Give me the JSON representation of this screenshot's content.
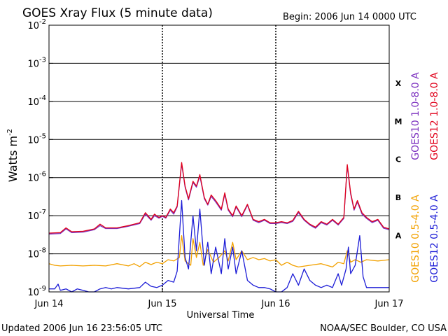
{
  "chart_data": {
    "type": "line",
    "title": "GOES Xray Flux (5 minute data)",
    "begin": "Begin:  2006 Jun 14 0000 UTC",
    "xlabel": "Universal Time",
    "ylabel": "Watts m",
    "ylabel_sup": "-2",
    "y_scale": "log",
    "ylim": [
      1e-09,
      0.01
    ],
    "xlim_days": [
      0,
      3
    ],
    "grid": true,
    "y_ticks": [
      {
        "base": "10",
        "exp": "-9",
        "value": 1e-09
      },
      {
        "base": "10",
        "exp": "-8",
        "value": 1e-08
      },
      {
        "base": "10",
        "exp": "-7",
        "value": 1e-07
      },
      {
        "base": "10",
        "exp": "-6",
        "value": 1e-06
      },
      {
        "base": "10",
        "exp": "-5",
        "value": 1e-05
      },
      {
        "base": "10",
        "exp": "-4",
        "value": 0.0001
      },
      {
        "base": "10",
        "exp": "-3",
        "value": 0.001
      },
      {
        "base": "10",
        "exp": "-2",
        "value": 0.01
      }
    ],
    "x_ticks": [
      {
        "label": "Jun 14",
        "day": 0
      },
      {
        "label": "Jun 15",
        "day": 1
      },
      {
        "label": "Jun 16",
        "day": 2
      },
      {
        "label": "Jun 17",
        "day": 3
      }
    ],
    "flare_classes": [
      {
        "label": "X",
        "value": 0.0003
      },
      {
        "label": "M",
        "value": 3e-05
      },
      {
        "label": "C",
        "value": 3e-06
      },
      {
        "label": "B",
        "value": 3e-07
      },
      {
        "label": "A",
        "value": 3e-08
      }
    ],
    "legend_long": [
      {
        "name": "GOES10 1.0-8.0 A",
        "color": "#7b2fbf"
      },
      {
        "name": "GOES12 1.0-8.0 A",
        "color": "#e0001a"
      }
    ],
    "legend_short": [
      {
        "name": "GOES10 0.5-4.0 A",
        "color": "#f2a100"
      },
      {
        "name": "GOES12 0.5-4.0 A",
        "color": "#1c1cd6"
      }
    ],
    "series": [
      {
        "name": "GOES12 1.0-8.0 A",
        "color": "#e0001a",
        "points": [
          [
            0.0,
            3.5e-08
          ],
          [
            0.1,
            3.6e-08
          ],
          [
            0.15,
            4.8e-08
          ],
          [
            0.2,
            3.8e-08
          ],
          [
            0.3,
            3.9e-08
          ],
          [
            0.4,
            4.5e-08
          ],
          [
            0.45,
            6e-08
          ],
          [
            0.5,
            4.8e-08
          ],
          [
            0.6,
            4.8e-08
          ],
          [
            0.7,
            5.5e-08
          ],
          [
            0.8,
            6.5e-08
          ],
          [
            0.85,
            1.2e-07
          ],
          [
            0.9,
            8e-08
          ],
          [
            0.93,
            1.1e-07
          ],
          [
            0.97,
            9e-08
          ],
          [
            1.0,
            1e-07
          ],
          [
            1.03,
            9e-08
          ],
          [
            1.07,
            1.5e-07
          ],
          [
            1.1,
            1.2e-07
          ],
          [
            1.13,
            1.8e-07
          ],
          [
            1.17,
            2.5e-06
          ],
          [
            1.2,
            6e-07
          ],
          [
            1.23,
            2.8e-07
          ],
          [
            1.27,
            8e-07
          ],
          [
            1.3,
            6e-07
          ],
          [
            1.33,
            1.2e-06
          ],
          [
            1.37,
            3e-07
          ],
          [
            1.4,
            2e-07
          ],
          [
            1.43,
            3.5e-07
          ],
          [
            1.47,
            2.5e-07
          ],
          [
            1.52,
            1.5e-07
          ],
          [
            1.55,
            4e-07
          ],
          [
            1.58,
            1.5e-07
          ],
          [
            1.62,
            1e-07
          ],
          [
            1.65,
            1.8e-07
          ],
          [
            1.7,
            1e-07
          ],
          [
            1.75,
            2e-07
          ],
          [
            1.8,
            8e-08
          ],
          [
            1.85,
            7e-08
          ],
          [
            1.9,
            8e-08
          ],
          [
            1.95,
            6.5e-08
          ],
          [
            2.0,
            6.5e-08
          ],
          [
            2.05,
            7e-08
          ],
          [
            2.1,
            6.5e-08
          ],
          [
            2.15,
            7.5e-08
          ],
          [
            2.2,
            1.3e-07
          ],
          [
            2.25,
            8e-08
          ],
          [
            2.3,
            6e-08
          ],
          [
            2.35,
            5e-08
          ],
          [
            2.4,
            7e-08
          ],
          [
            2.45,
            6e-08
          ],
          [
            2.5,
            8e-08
          ],
          [
            2.55,
            6e-08
          ],
          [
            2.6,
            9e-08
          ],
          [
            2.63,
            2.2e-06
          ],
          [
            2.66,
            4e-07
          ],
          [
            2.69,
            1.5e-07
          ],
          [
            2.72,
            2.5e-07
          ],
          [
            2.76,
            1.2e-07
          ],
          [
            2.8,
            9e-08
          ],
          [
            2.85,
            7e-08
          ],
          [
            2.9,
            8e-08
          ],
          [
            2.95,
            5e-08
          ],
          [
            3.0,
            4.5e-08
          ]
        ]
      },
      {
        "name": "GOES10 1.0-8.0 A",
        "color": "#7b2fbf",
        "points": [
          [
            0.0,
            3.3e-08
          ],
          [
            0.1,
            3.4e-08
          ],
          [
            0.15,
            4.5e-08
          ],
          [
            0.2,
            3.6e-08
          ],
          [
            0.3,
            3.7e-08
          ],
          [
            0.4,
            4.3e-08
          ],
          [
            0.45,
            5.5e-08
          ],
          [
            0.5,
            4.6e-08
          ],
          [
            0.6,
            4.6e-08
          ],
          [
            0.7,
            5.3e-08
          ],
          [
            0.8,
            6.2e-08
          ],
          [
            0.85,
            1.1e-07
          ],
          [
            0.9,
            7.6e-08
          ],
          [
            0.93,
            1e-07
          ],
          [
            0.97,
            8.6e-08
          ],
          [
            1.0,
            9.6e-08
          ],
          [
            1.03,
            8.6e-08
          ],
          [
            1.07,
            1.4e-07
          ],
          [
            1.1,
            1.1e-07
          ],
          [
            1.13,
            1.7e-07
          ],
          [
            1.17,
            2.3e-06
          ],
          [
            1.2,
            5.6e-07
          ],
          [
            1.23,
            2.6e-07
          ],
          [
            1.27,
            7.4e-07
          ],
          [
            1.3,
            5.6e-07
          ],
          [
            1.33,
            1.1e-06
          ],
          [
            1.37,
            2.8e-07
          ],
          [
            1.4,
            1.9e-07
          ],
          [
            1.43,
            3.2e-07
          ],
          [
            1.47,
            2.3e-07
          ],
          [
            1.52,
            1.4e-07
          ],
          [
            1.55,
            3.7e-07
          ],
          [
            1.58,
            1.4e-07
          ],
          [
            1.62,
            9.4e-08
          ],
          [
            1.65,
            1.7e-07
          ],
          [
            1.7,
            9.4e-08
          ],
          [
            1.75,
            1.9e-07
          ],
          [
            1.8,
            7.6e-08
          ],
          [
            1.85,
            6.6e-08
          ],
          [
            1.9,
            7.6e-08
          ],
          [
            1.95,
            6.2e-08
          ],
          [
            2.0,
            6.2e-08
          ],
          [
            2.05,
            6.6e-08
          ],
          [
            2.1,
            6.2e-08
          ],
          [
            2.15,
            7.1e-08
          ],
          [
            2.2,
            1.2e-07
          ],
          [
            2.25,
            7.6e-08
          ],
          [
            2.3,
            5.7e-08
          ],
          [
            2.35,
            4.7e-08
          ],
          [
            2.4,
            6.6e-08
          ],
          [
            2.45,
            5.7e-08
          ],
          [
            2.5,
            7.6e-08
          ],
          [
            2.55,
            5.7e-08
          ],
          [
            2.6,
            8.5e-08
          ],
          [
            2.63,
            2e-06
          ],
          [
            2.66,
            3.7e-07
          ],
          [
            2.69,
            1.4e-07
          ],
          [
            2.72,
            2.3e-07
          ],
          [
            2.76,
            1.1e-07
          ],
          [
            2.8,
            8.5e-08
          ],
          [
            2.85,
            6.6e-08
          ],
          [
            2.9,
            7.6e-08
          ],
          [
            2.95,
            4.7e-08
          ],
          [
            3.0,
            4.3e-08
          ]
        ]
      },
      {
        "name": "GOES10 0.5-4.0 A",
        "color": "#f2a100",
        "points": [
          [
            0.0,
            5.5e-09
          ],
          [
            0.05,
            5e-09
          ],
          [
            0.1,
            4.8e-09
          ],
          [
            0.2,
            5e-09
          ],
          [
            0.3,
            4.8e-09
          ],
          [
            0.4,
            5e-09
          ],
          [
            0.5,
            4.8e-09
          ],
          [
            0.6,
            5.5e-09
          ],
          [
            0.7,
            4.8e-09
          ],
          [
            0.75,
            5.5e-09
          ],
          [
            0.8,
            4.6e-09
          ],
          [
            0.85,
            6e-09
          ],
          [
            0.9,
            5.2e-09
          ],
          [
            0.95,
            6e-09
          ],
          [
            1.0,
            5.5e-09
          ],
          [
            1.05,
            7e-09
          ],
          [
            1.1,
            6.5e-09
          ],
          [
            1.15,
            8e-09
          ],
          [
            1.17,
            3e-08
          ],
          [
            1.2,
            6.5e-09
          ],
          [
            1.25,
            5e-09
          ],
          [
            1.27,
            2.5e-08
          ],
          [
            1.3,
            8e-09
          ],
          [
            1.33,
            2e-08
          ],
          [
            1.36,
            5e-09
          ],
          [
            1.4,
            1.3e-08
          ],
          [
            1.45,
            6e-09
          ],
          [
            1.5,
            8e-09
          ],
          [
            1.55,
            1.2e-08
          ],
          [
            1.58,
            6.5e-09
          ],
          [
            1.62,
            2e-08
          ],
          [
            1.65,
            7e-09
          ],
          [
            1.7,
            1.2e-08
          ],
          [
            1.75,
            7e-09
          ],
          [
            1.8,
            8e-09
          ],
          [
            1.85,
            7e-09
          ],
          [
            1.9,
            7.5e-09
          ],
          [
            1.95,
            6.5e-09
          ],
          [
            2.0,
            7e-09
          ],
          [
            2.05,
            5e-09
          ],
          [
            2.1,
            6e-09
          ],
          [
            2.15,
            5e-09
          ],
          [
            2.2,
            4.5e-09
          ],
          [
            2.3,
            5e-09
          ],
          [
            2.4,
            5.5e-09
          ],
          [
            2.5,
            4.5e-09
          ],
          [
            2.55,
            6e-09
          ],
          [
            2.6,
            5.5e-09
          ],
          [
            2.63,
            1.2e-08
          ],
          [
            2.66,
            6e-09
          ],
          [
            2.7,
            7e-09
          ],
          [
            2.75,
            6e-09
          ],
          [
            2.8,
            7e-09
          ],
          [
            2.9,
            6.5e-09
          ],
          [
            3.0,
            7e-09
          ]
        ]
      },
      {
        "name": "GOES12 0.5-4.0 A",
        "color": "#1c1cd6",
        "points": [
          [
            0.0,
            1.2e-09
          ],
          [
            0.05,
            1.2e-09
          ],
          [
            0.08,
            1.6e-09
          ],
          [
            0.1,
            1.1e-09
          ],
          [
            0.15,
            1.2e-09
          ],
          [
            0.2,
            1e-09
          ],
          [
            0.25,
            1.2e-09
          ],
          [
            0.3,
            1.1e-09
          ],
          [
            0.35,
            1e-09
          ],
          [
            0.4,
            1e-09
          ],
          [
            0.45,
            1.2e-09
          ],
          [
            0.5,
            1.3e-09
          ],
          [
            0.55,
            1.2e-09
          ],
          [
            0.6,
            1.3e-09
          ],
          [
            0.7,
            1.2e-09
          ],
          [
            0.8,
            1.3e-09
          ],
          [
            0.85,
            1.8e-09
          ],
          [
            0.9,
            1.4e-09
          ],
          [
            0.95,
            1.3e-09
          ],
          [
            1.0,
            1.5e-09
          ],
          [
            1.05,
            2e-09
          ],
          [
            1.1,
            1.8e-09
          ],
          [
            1.13,
            3.5e-09
          ],
          [
            1.17,
            2.5e-07
          ],
          [
            1.2,
            8e-09
          ],
          [
            1.23,
            4e-09
          ],
          [
            1.27,
            1e-07
          ],
          [
            1.3,
            1.2e-08
          ],
          [
            1.33,
            1.5e-07
          ],
          [
            1.37,
            5e-09
          ],
          [
            1.4,
            2e-08
          ],
          [
            1.43,
            3e-09
          ],
          [
            1.47,
            1.5e-08
          ],
          [
            1.52,
            3e-09
          ],
          [
            1.55,
            2.5e-08
          ],
          [
            1.58,
            4e-09
          ],
          [
            1.62,
            1.5e-08
          ],
          [
            1.65,
            3e-09
          ],
          [
            1.7,
            1.2e-08
          ],
          [
            1.75,
            2e-09
          ],
          [
            1.8,
            1.5e-09
          ],
          [
            1.85,
            1.3e-09
          ],
          [
            1.9,
            1.3e-09
          ],
          [
            1.95,
            1.2e-09
          ],
          [
            2.0,
            1e-09
          ],
          [
            2.05,
            1e-09
          ],
          [
            2.1,
            1.3e-09
          ],
          [
            2.15,
            3e-09
          ],
          [
            2.2,
            1.5e-09
          ],
          [
            2.25,
            4e-09
          ],
          [
            2.3,
            2e-09
          ],
          [
            2.35,
            1.5e-09
          ],
          [
            2.4,
            1.3e-09
          ],
          [
            2.45,
            1.5e-09
          ],
          [
            2.5,
            1.3e-09
          ],
          [
            2.55,
            3e-09
          ],
          [
            2.58,
            1.5e-09
          ],
          [
            2.62,
            4e-09
          ],
          [
            2.64,
            1.5e-08
          ],
          [
            2.66,
            3e-09
          ],
          [
            2.7,
            5e-09
          ],
          [
            2.74,
            3e-08
          ],
          [
            2.77,
            2.5e-09
          ],
          [
            2.8,
            1.3e-09
          ],
          [
            2.85,
            1.3e-09
          ],
          [
            2.9,
            1.3e-09
          ],
          [
            2.95,
            1.3e-09
          ],
          [
            3.0,
            1.3e-09
          ]
        ]
      }
    ]
  },
  "footer": {
    "updated": "Updated 2006 Jun 16 23:56:05 UTC",
    "credit": "NOAA/SEC Boulder, CO USA"
  }
}
